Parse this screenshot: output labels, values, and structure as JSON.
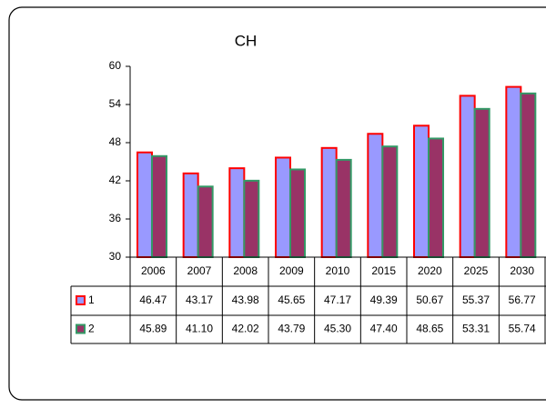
{
  "chart_data": {
    "type": "bar",
    "title": "CH",
    "categories": [
      "2006",
      "2007",
      "2008",
      "2009",
      "2010",
      "2015",
      "2020",
      "2025",
      "2030"
    ],
    "series": [
      {
        "name": "1",
        "color": "#9999ff",
        "edge_color": "#ff0000",
        "values": [
          46.47,
          43.17,
          43.98,
          45.65,
          47.17,
          49.39,
          50.67,
          55.37,
          56.77
        ],
        "value_labels": [
          "46.47",
          "43.17",
          "43.98",
          "45.65",
          "47.17",
          "49.39",
          "50.67",
          "55.37",
          "56.77"
        ]
      },
      {
        "name": "2",
        "color": "#993366",
        "edge_color": "#339966",
        "values": [
          45.89,
          41.1,
          42.02,
          43.79,
          45.3,
          47.4,
          48.65,
          53.31,
          55.74
        ],
        "value_labels": [
          "45.89",
          "41.10",
          "42.02",
          "43.79",
          "45.30",
          "47.40",
          "48.65",
          "53.31",
          "55.74"
        ]
      }
    ],
    "ylim": [
      30,
      60
    ],
    "yticks": [
      30,
      36,
      42,
      48,
      54,
      60
    ],
    "grid": false
  }
}
